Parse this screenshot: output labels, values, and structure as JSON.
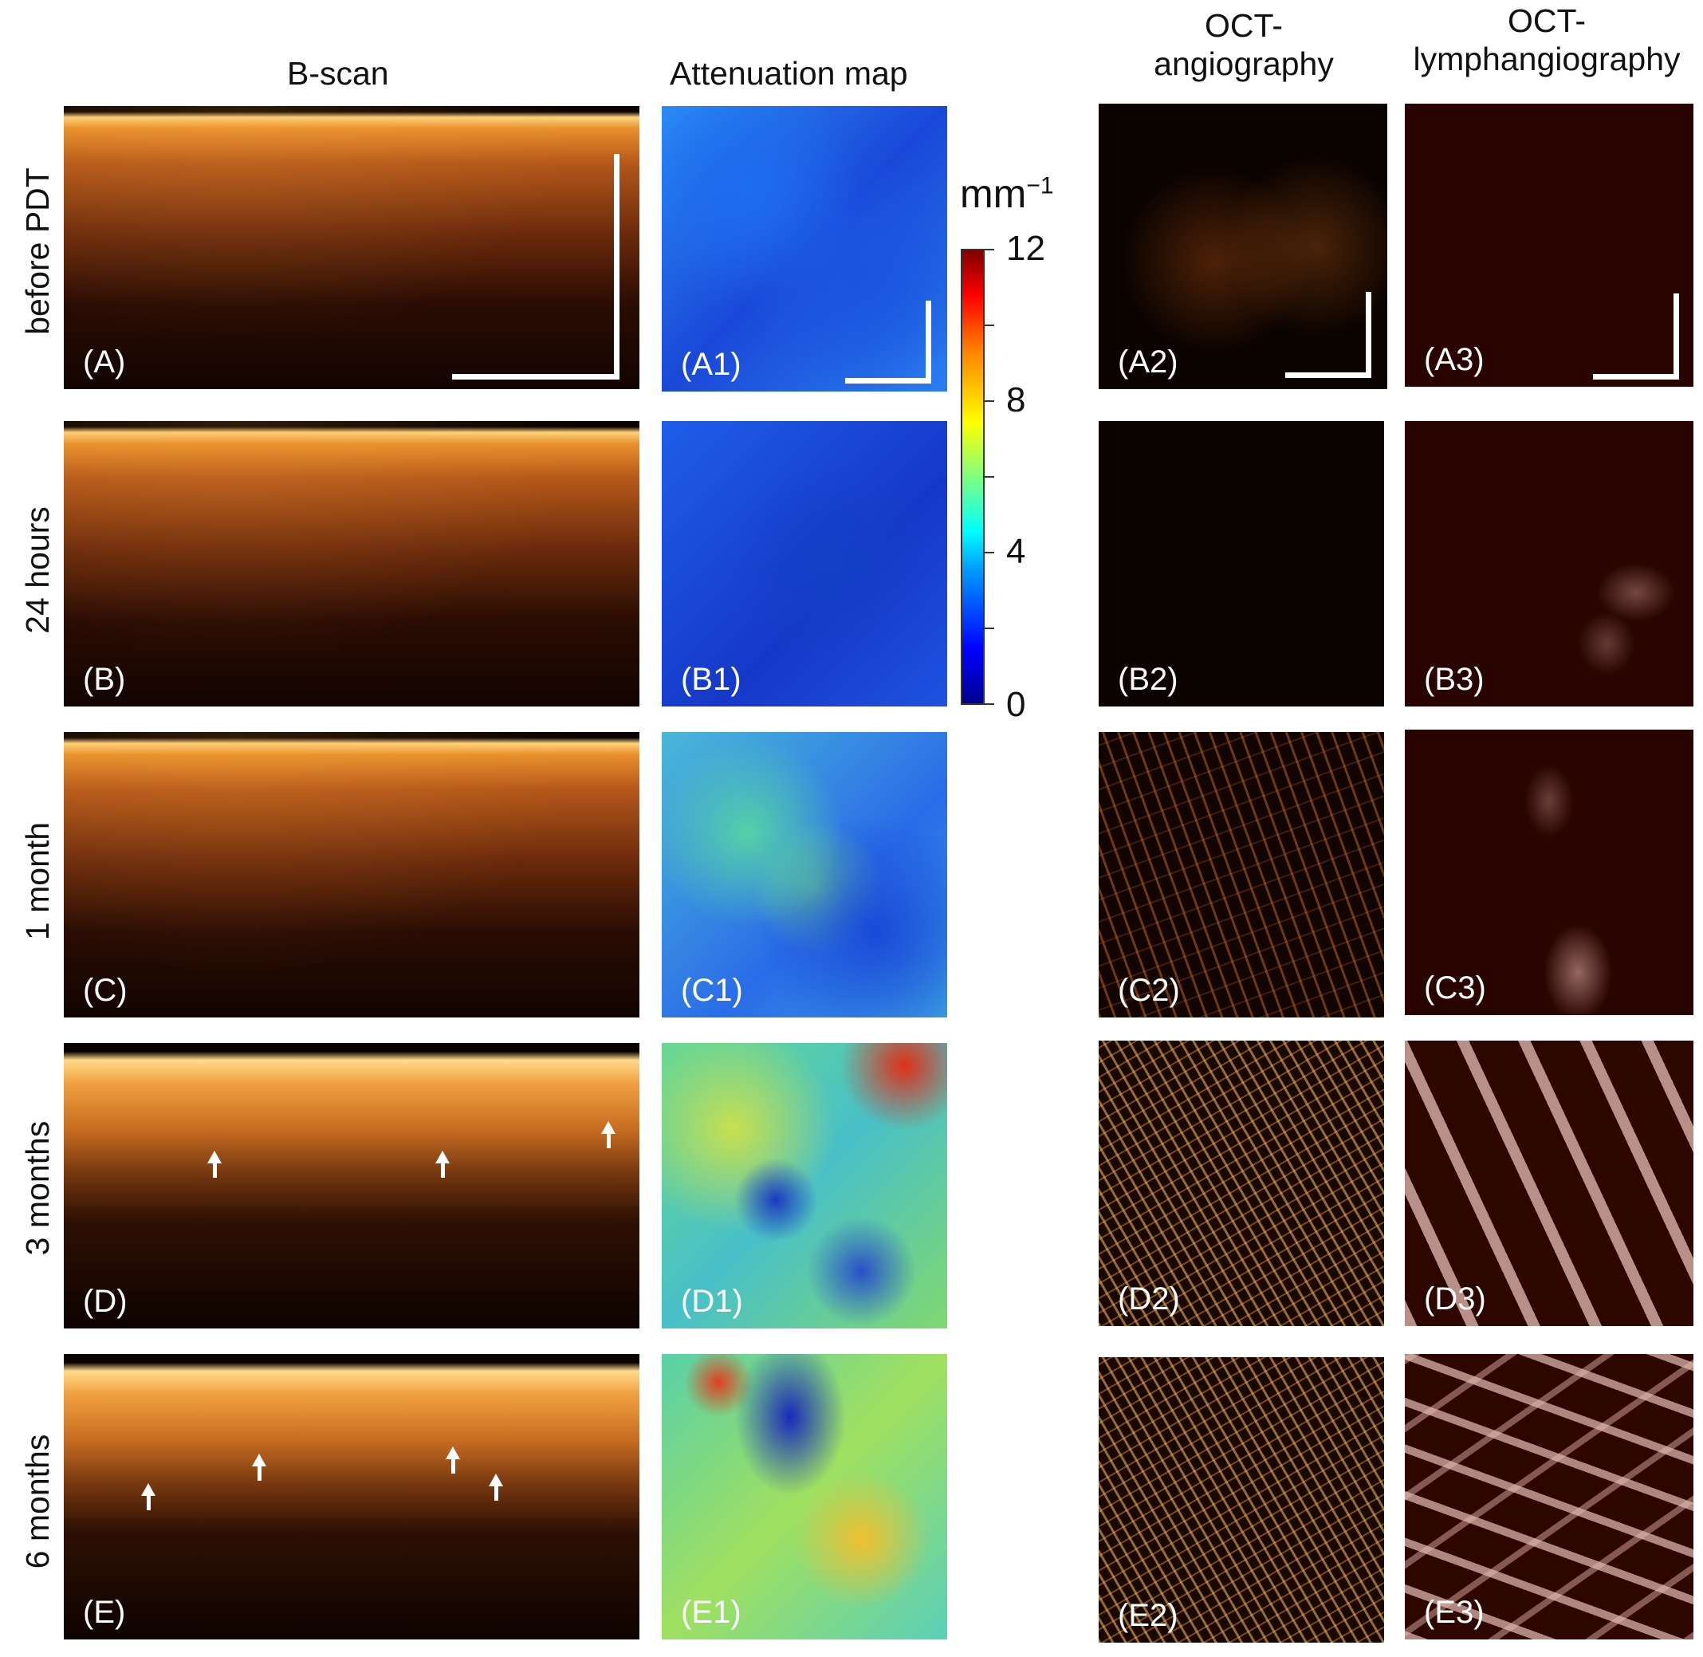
{
  "columns": {
    "bscan": "B-scan",
    "attenuation": "Attenuation map",
    "angio_line1": "OCT-",
    "angio_line2": "angiography",
    "lymph_line1": "OCT-",
    "lymph_line2": "lymphangiography"
  },
  "rows": [
    "before PDT",
    "24 hours",
    "1 month",
    "3 months",
    "6 months"
  ],
  "panels": {
    "A": [
      "(A)",
      "(A1)",
      "(A2)",
      "(A3)"
    ],
    "B": [
      "(B)",
      "(B1)",
      "(B2)",
      "(B3)"
    ],
    "C": [
      "(C)",
      "(C1)",
      "(C2)",
      "(C3)"
    ],
    "D": [
      "(D)",
      "(D1)",
      "(D2)",
      "(D3)"
    ],
    "E": [
      "(E)",
      "(E1)",
      "(E2)",
      "(E3)"
    ]
  },
  "colorbar": {
    "unit_base": "mm",
    "unit_exp": "−1",
    "ticks": [
      "12",
      "8",
      "4",
      "0"
    ]
  }
}
